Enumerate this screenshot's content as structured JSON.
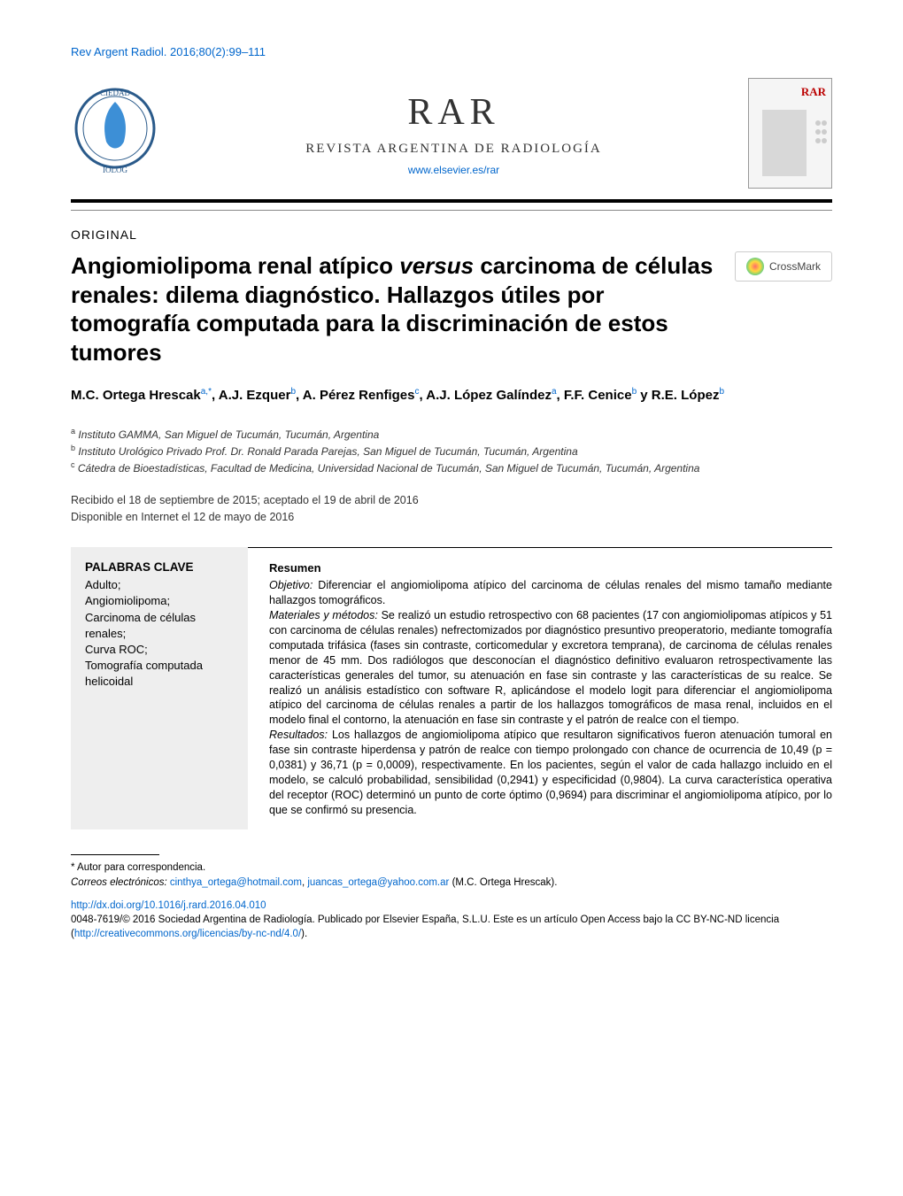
{
  "citation": "Rev Argent Radiol. 2016;80(2):99–111",
  "header": {
    "journal_abbrev_big": "RAR",
    "journal_full": "REVISTA ARGENTINA DE RADIOLOGÍA",
    "journal_url": "www.elsevier.es/rar",
    "cover_label": "RAR"
  },
  "section_label": "ORIGINAL",
  "title": "Angiomiolipoma renal atípico versus carcinoma de células renales: dilema diagnóstico. Hallazgos útiles por tomografía computada para la discriminación de estos tumores",
  "crossmark_label": "CrossMark",
  "authors_html": "M.C. Ortega Hrescak<sup class='sup'>a,*</sup>, A.J. Ezquer<sup class='sup'>b</sup>, A. Pérez Renfiges<sup class='sup'>c</sup>, A.J. López Galíndez<sup class='sup'>a</sup>, F.F. Cenice<sup class='sup'>b</sup> y R.E. López<sup class='sup'>b</sup>",
  "affiliations": {
    "a": "Instituto GAMMA, San Miguel de Tucumán, Tucumán, Argentina",
    "b": "Instituto Urológico Privado Prof. Dr. Ronald Parada Parejas, San Miguel de Tucumán, Tucumán, Argentina",
    "c": "Cátedra de Bioestadísticas, Facultad de Medicina, Universidad Nacional de Tucumán, San Miguel de Tucumán, Tucumán, Argentina"
  },
  "dates": {
    "received_accepted": "Recibido el 18 de septiembre de 2015; aceptado el 19 de abril de 2016",
    "online": "Disponible en Internet el 12 de mayo de 2016"
  },
  "keywords": {
    "heading": "PALABRAS CLAVE",
    "items": [
      "Adulto;",
      "Angiomiolipoma;",
      "Carcinoma de células renales;",
      "Curva ROC;",
      "Tomografía computada helicoidal"
    ]
  },
  "abstract": {
    "heading": "Resumen",
    "objetivo_label": "Objetivo:",
    "objetivo": "Diferenciar el angiomiolipoma atípico del carcinoma de células renales del mismo tamaño mediante hallazgos tomográficos.",
    "materiales_label": "Materiales y métodos:",
    "materiales": "Se realizó un estudio retrospectivo con 68 pacientes (17 con angiomiolipomas atípicos y 51 con carcinoma de células renales) nefrectomizados por diagnóstico presuntivo preoperatorio, mediante tomografía computada trifásica (fases sin contraste, corticomedular y excretora temprana), de carcinoma de células renales menor de 45 mm. Dos radiólogos que desconocían el diagnóstico definitivo evaluaron retrospectivamente las características generales del tumor, su atenuación en fase sin contraste y las características de su realce. Se realizó un análisis estadístico con software R, aplicándose el modelo logit para diferenciar el angiomiolipoma atípico del carcinoma de células renales a partir de los hallazgos tomográficos de masa renal, incluidos en el modelo final el contorno, la atenuación en fase sin contraste y el patrón de realce con el tiempo.",
    "resultados_label": "Resultados:",
    "resultados": "Los hallazgos de angiomiolipoma atípico que resultaron significativos fueron atenuación tumoral en fase sin contraste hiperdensa y patrón de realce con tiempo prolongado con chance de ocurrencia de 10,49 (p = 0,0381) y 36,71 (p = 0,0009), respectivamente. En los pacientes, según el valor de cada hallazgo incluido en el modelo, se calculó probabilidad, sensibilidad (0,2941) y especificidad (0,9804). La curva característica operativa del receptor (ROC) determinó un punto de corte óptimo (0,9694) para discriminar el angiomiolipoma atípico, por lo que se confirmó su presencia."
  },
  "correspondence": {
    "label": "* Autor para correspondencia.",
    "emails_label": "Correos electrónicos:",
    "email1": "cinthya_ortega@hotmail.com",
    "email2": "juancas_ortega@yahoo.com.ar",
    "author_paren": "(M.C. Ortega Hrescak)."
  },
  "doi": {
    "url": "http://dx.doi.org/10.1016/j.rard.2016.04.010",
    "copyright": "0048-7619/© 2016 Sociedad Argentina de Radiología. Publicado por Elsevier España, S.L.U. Este es un artículo Open Access bajo la CC BY-NC-ND licencia (",
    "license_url": "http://creativecommons.org/licencias/by-nc-nd/4.0/",
    "close": ")."
  },
  "colors": {
    "link": "#0066cc",
    "text": "#000000",
    "keywords_bg": "#eeeeee",
    "divider": "#000000"
  }
}
